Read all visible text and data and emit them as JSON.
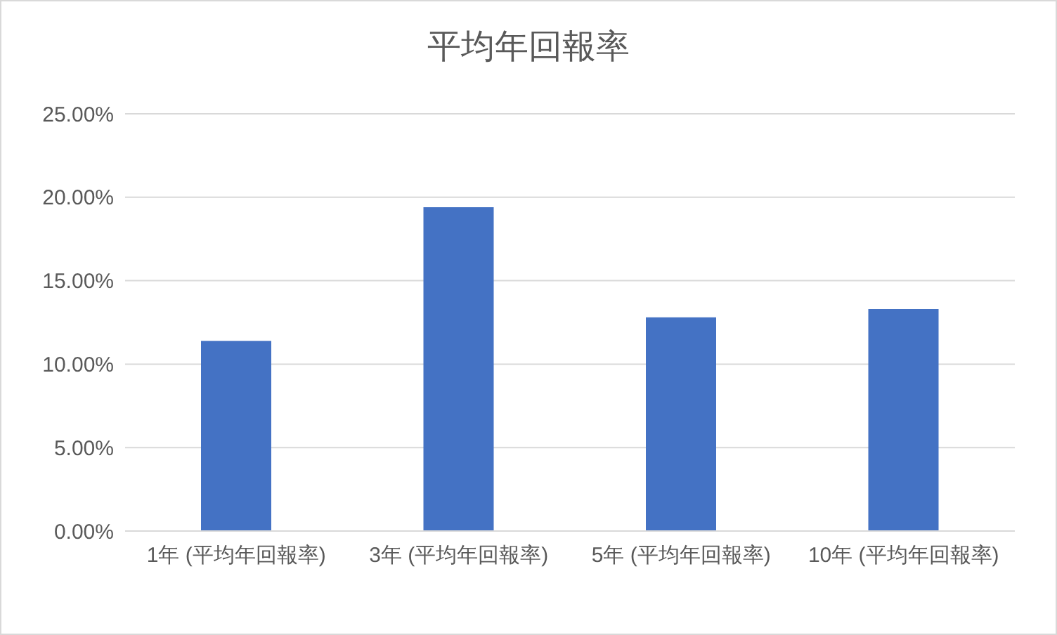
{
  "chart_data": {
    "type": "bar",
    "title": "平均年回報率",
    "categories": [
      "1年 (平均年回報率)",
      "3年 (平均年回報率)",
      "5年 (平均年回報率)",
      "10年 (平均年回報率)"
    ],
    "values": [
      11.4,
      19.4,
      12.8,
      13.3
    ],
    "color": "#4472c4",
    "ylim": [
      0,
      25
    ],
    "yticks": [
      {
        "value": 0,
        "label": "0.00%"
      },
      {
        "value": 5,
        "label": "5.00%"
      },
      {
        "value": 10,
        "label": "10.00%"
      },
      {
        "value": 15,
        "label": "15.00%"
      },
      {
        "value": 20,
        "label": "20.00%"
      },
      {
        "value": 25,
        "label": "25.00%"
      }
    ],
    "grid": "y"
  }
}
